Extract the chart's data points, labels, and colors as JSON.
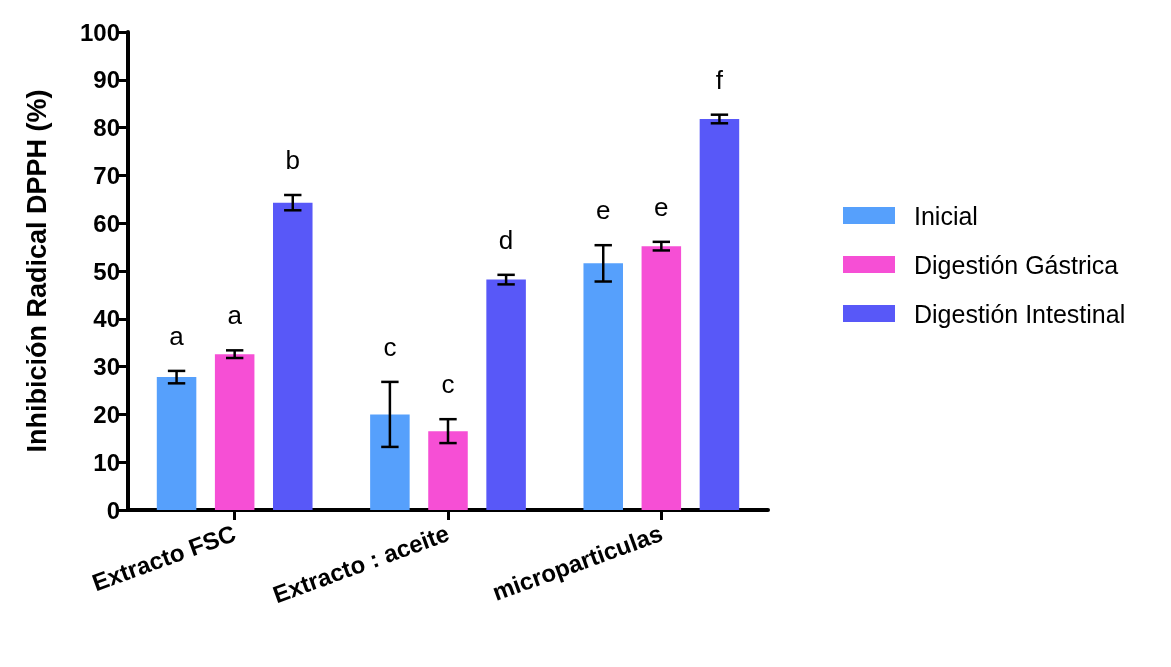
{
  "chart_data": {
    "type": "bar",
    "ylabel": "Inhibición Radical DPPH (%)",
    "categories": [
      "Extracto FSC",
      "Extracto : aceite",
      "microparticulas"
    ],
    "series": [
      {
        "name": "Inicial",
        "color": "#56a0fc",
        "values": [
          27.8,
          20,
          51.6
        ],
        "errors": [
          1.3,
          6.8,
          3.8
        ],
        "value_labels": [
          "a",
          "c",
          "e"
        ]
      },
      {
        "name": "Digestión Gástrica",
        "color": "#f64fd5",
        "values": [
          32.6,
          16.5,
          55.2
        ],
        "errors": [
          0.8,
          2.5,
          0.9
        ],
        "value_labels": [
          "a",
          "c",
          "e"
        ]
      },
      {
        "name": "Digestión Intestinal",
        "color": "#5858f8",
        "values": [
          64.3,
          48.2,
          81.8
        ],
        "errors": [
          1.6,
          1.0,
          0.9
        ],
        "value_labels": [
          "b",
          "d",
          "f"
        ]
      }
    ],
    "ylim": [
      0,
      100
    ],
    "yticks": [
      0,
      10,
      20,
      30,
      40,
      50,
      60,
      70,
      80,
      90,
      100
    ],
    "grid": false,
    "legend": "right"
  }
}
